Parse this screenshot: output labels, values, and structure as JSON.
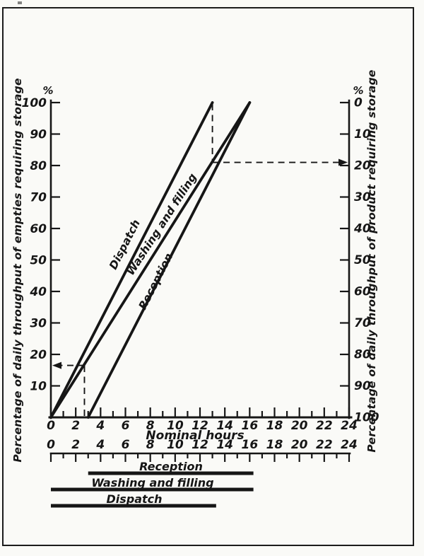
{
  "colors": {
    "ink": "#161616",
    "paper": "#fafaf7",
    "frame": "#1c1c1c"
  },
  "chart_data": {
    "type": "line",
    "title": "",
    "x_axis": {
      "label": "Nominal hours",
      "min": 0,
      "max": 24,
      "major_tick_labels": [
        0,
        2,
        4,
        6,
        8,
        10,
        12,
        14,
        16,
        18,
        20,
        22,
        24
      ],
      "minor_tick_step": 1
    },
    "left_axis": {
      "unit": "%",
      "label": "Percentage of daily throughput of empties requiring storage",
      "min": 0,
      "max": 100,
      "direction": "up",
      "tick_labels": [
        100,
        90,
        80,
        70,
        60,
        50,
        40,
        30,
        20,
        10
      ]
    },
    "right_axis": {
      "unit": "%",
      "label": "Percentage of daily throughput of product requiring storage",
      "min": 0,
      "max": 100,
      "direction": "down",
      "tick_labels": [
        0,
        10,
        20,
        30,
        40,
        50,
        60,
        70,
        80,
        90,
        100
      ]
    },
    "series": [
      {
        "name": "Dispatch",
        "points": [
          [
            0,
            0
          ],
          [
            13,
            100
          ]
        ]
      },
      {
        "name": "Washing and filling",
        "points": [
          [
            0,
            0
          ],
          [
            16,
            100
          ]
        ]
      },
      {
        "name": "Reception",
        "points": [
          [
            3,
            0
          ],
          [
            16,
            100
          ]
        ]
      }
    ],
    "guides": [
      {
        "hour": 2.7,
        "left_axis_reading": 16.5,
        "arrow_to": "left-axis"
      },
      {
        "hour": 13,
        "from_percent": 100,
        "intersect_percent": 81,
        "right_axis_reading": 19,
        "arrow_to": "right-axis"
      }
    ],
    "timeline": {
      "tick_labels": [
        0,
        2,
        4,
        6,
        8,
        10,
        12,
        14,
        16,
        18,
        20,
        22,
        24
      ],
      "minor_tick_step": 1,
      "bars": [
        {
          "name": "Reception",
          "start_hour": 3,
          "end_hour": 16.3
        },
        {
          "name": "Washing and filling",
          "start_hour": 0,
          "end_hour": 16.3
        },
        {
          "name": "Dispatch",
          "start_hour": 0,
          "end_hour": 13.3
        }
      ]
    }
  }
}
